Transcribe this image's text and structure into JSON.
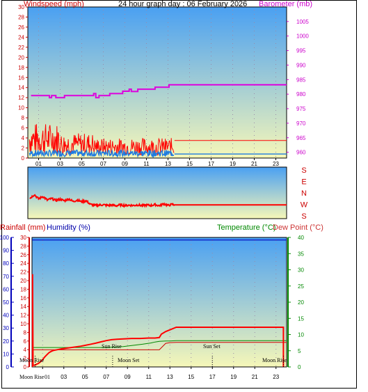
{
  "colors": {
    "wind": "#ff0000",
    "gust": "#ff0000",
    "wind_avg": "#1e7be0",
    "barometer": "#dd00dd",
    "direction": "#ff0000",
    "rain": "#ff0000",
    "humidity": "#0000bb",
    "temperature": "#008800",
    "dewpoint": "#cc0000",
    "sky_top": "#4aa0f2",
    "sky_bottom": "#f6f7b8"
  },
  "chart_data": [
    {
      "type": "line",
      "title": "24 hour graph day : 06 February 2026",
      "ylabel_left": "Windspeed (mph)",
      "ylabel_right": "Barometer (mb)",
      "x_ticks": [
        "01",
        "03",
        "05",
        "07",
        "09",
        "11",
        "13",
        "15",
        "17",
        "19",
        "21",
        "23"
      ],
      "y_left_ticks": [
        "0",
        "2",
        "4",
        "6",
        "8",
        "10",
        "12",
        "14",
        "16",
        "18",
        "20",
        "22",
        "24",
        "26",
        "28",
        "30"
      ],
      "y_right_ticks": [
        "960",
        "965",
        "970",
        "975",
        "980",
        "985",
        "990",
        "995",
        "1000",
        "1005"
      ],
      "ylim_left": [
        0,
        30
      ],
      "ylim_right": [
        958,
        1010
      ],
      "xlim": [
        0,
        24
      ],
      "barometer": {
        "x": [
          0.3,
          2.0,
          2.0,
          2.2,
          2.2,
          2.6,
          2.6,
          3.4,
          3.4,
          4.0,
          4.0,
          6.1,
          6.1,
          6.3,
          6.3,
          6.6,
          6.6,
          6.9,
          6.9,
          7.6,
          7.6,
          8.8,
          8.8,
          9.4,
          9.4,
          9.6,
          9.6,
          10.2,
          10.2,
          11.8,
          11.8,
          13.1,
          13.1,
          13.5,
          13.5,
          24.0
        ],
        "y": [
          979.5,
          979.5,
          978.8,
          978.8,
          979.5,
          979.5,
          978.8,
          978.8,
          979.5,
          979.5,
          979.5,
          979.5,
          980.2,
          980.2,
          978.8,
          978.8,
          979.5,
          979.5,
          979.5,
          979.5,
          980.2,
          980.2,
          981.0,
          981.0,
          981.7,
          981.7,
          980.9,
          980.9,
          981.7,
          981.7,
          982.4,
          982.4,
          983.2,
          983.2,
          983.2,
          983.2
        ]
      },
      "wind_current_level": 3.5,
      "wind_avg_current_level": 0.8,
      "wind_series_end_hour": 13.6
    },
    {
      "type": "line",
      "ylabel": "Wind direction",
      "direction_labels": [
        "S",
        "E",
        "N",
        "W",
        "S"
      ],
      "ylim": [
        0,
        360
      ],
      "xlim": [
        0,
        24
      ],
      "x": [
        0.2,
        0.6,
        1.0,
        1.4,
        1.8,
        2.2,
        2.6,
        3.0,
        3.4,
        3.8,
        4.2,
        4.6,
        5.0,
        5.4,
        5.8,
        6.2,
        6.6,
        7.0,
        7.4,
        7.8,
        8.2,
        8.6,
        9.0,
        9.4,
        9.8,
        10.2,
        10.6,
        11.0,
        11.4,
        11.8,
        12.2,
        12.6,
        13.0,
        13.4,
        13.6,
        24.0
      ],
      "y": [
        142,
        168,
        138,
        155,
        130,
        140,
        128,
        135,
        125,
        138,
        120,
        130,
        118,
        125,
        100,
        92,
        95,
        97,
        92,
        95,
        90,
        96,
        92,
        94,
        92,
        96,
        91,
        95,
        92,
        98,
        90,
        104,
        92,
        100,
        96,
        96
      ]
    },
    {
      "type": "line",
      "ylabel_left_1": "Rainfall (mm)",
      "ylabel_left_2": "Humidity (%)",
      "ylabel_right_1": "Temperature (°C)",
      "ylabel_right_2": "Dew Point (°C)",
      "x_ticks": [
        "01",
        "03",
        "05",
        "07",
        "09",
        "11",
        "13",
        "15",
        "17",
        "19",
        "21",
        "23"
      ],
      "humidity_ticks": [
        "0",
        "10",
        "20",
        "30",
        "40",
        "50",
        "60",
        "70",
        "80",
        "90",
        "100"
      ],
      "rain_ticks": [
        "0",
        "2",
        "4",
        "6",
        "8",
        "10",
        "12",
        "14",
        "16",
        "18",
        "20",
        "22",
        "24",
        "26",
        "28",
        "30"
      ],
      "temp_ticks": [
        "0",
        "5",
        "10",
        "15",
        "20",
        "25",
        "30",
        "35",
        "40"
      ],
      "xlim": [
        0,
        24
      ],
      "ylim_rain": [
        0,
        30
      ],
      "ylim_humidity": [
        0,
        100
      ],
      "ylim_temp": [
        0,
        40
      ],
      "humidity_level": 98,
      "rain_total": {
        "x": [
          0.05,
          0.05,
          0.1,
          0.3,
          0.4,
          0.6,
          0.8,
          1.0,
          1.2,
          1.4,
          1.6,
          1.8,
          2.0,
          2.4,
          2.8,
          3.4,
          4.0,
          4.6,
          5.0,
          5.4,
          6.0,
          6.5,
          7.0,
          7.5,
          8.0,
          8.6,
          9.4,
          10.2,
          11.0,
          11.6,
          12.0,
          12.2,
          12.6,
          13.0,
          13.6,
          23.7,
          23.7
        ],
        "y": [
          0,
          21.5,
          0.4,
          0.4,
          0.6,
          0.8,
          1.2,
          1.7,
          2.3,
          2.8,
          3.3,
          3.6,
          3.8,
          4.0,
          4.2,
          4.4,
          4.6,
          4.8,
          5.0,
          5.2,
          5.5,
          5.8,
          6.1,
          6.3,
          6.4,
          6.5,
          6.6,
          6.6,
          6.7,
          6.7,
          6.8,
          7.6,
          8.2,
          8.6,
          9.2,
          9.2,
          0
        ]
      },
      "temperature": {
        "x": [
          0.0,
          7.0,
          7.6,
          8.6,
          9.4,
          10.4,
          11.2,
          11.6,
          12.0,
          12.6,
          13.0,
          13.6,
          24.0
        ],
        "y": [
          6.0,
          6.0,
          6.1,
          6.3,
          6.6,
          7.0,
          7.4,
          7.7,
          7.9,
          8.0,
          8.0,
          8.1,
          8.1
        ]
      },
      "dew_point": {
        "x": [
          0.0,
          12.0,
          12.6,
          13.0,
          13.6,
          24.0
        ],
        "y": [
          5.3,
          5.3,
          7.3,
          7.5,
          7.6,
          7.6
        ]
      },
      "sun_rise_label": "Sun Rise",
      "sun_set_label": "Sun Set",
      "moon_rise_label": "Moon Rise",
      "moon_set_label": "Moon Set",
      "moon_rise_bottom_label": "Moon Rise",
      "moon_rise_bottom_suffix": "01",
      "moon_rise_hour": 0.3,
      "moon_set_hour": 7.6,
      "sun_set_hour": 17.0,
      "moon_rise_hour_2": 23.7
    }
  ]
}
